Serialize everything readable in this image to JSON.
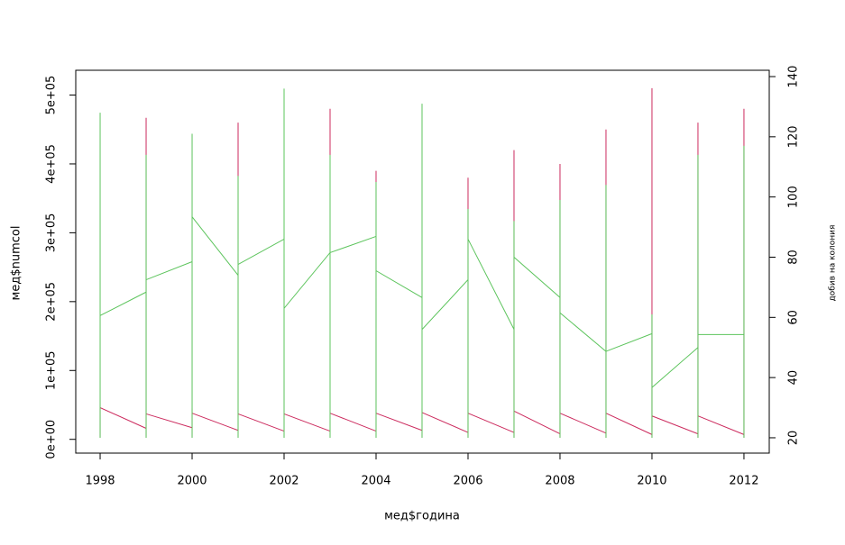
{
  "chart_data": {
    "type": "line",
    "xlabel": "мед$година",
    "ylabel": "мед$numcol",
    "y2label": "добив на колония",
    "xlim": [
      1997.47,
      2012.55
    ],
    "xticks": [
      1998,
      2000,
      2002,
      2004,
      2006,
      2008,
      2010,
      2012
    ],
    "ylim": [
      -20000,
      536000
    ],
    "yticks": [
      {
        "value": 0,
        "label": "0e+00"
      },
      {
        "value": 100000,
        "label": "1e+05"
      },
      {
        "value": 200000,
        "label": "2e+05"
      },
      {
        "value": 300000,
        "label": "3e+05"
      },
      {
        "value": 400000,
        "label": "4e+05"
      },
      {
        "value": 500000,
        "label": "5e+05"
      }
    ],
    "y2lim": [
      14.9,
      142.1
    ],
    "y2ticks": [
      20,
      40,
      60,
      80,
      100,
      120,
      140
    ],
    "series": [
      {
        "color": "#cc2b5e",
        "x": [
          1998,
          1998,
          1999,
          1999,
          1999,
          1999,
          2000,
          2000,
          2000,
          2000,
          2001,
          2001,
          2001,
          2001,
          2002,
          2002,
          2002,
          2002,
          2003,
          2003,
          2003,
          2003,
          2004,
          2004,
          2004,
          2004,
          2005,
          2005,
          2005,
          2005,
          2006,
          2006,
          2006,
          2006,
          2007,
          2007,
          2007,
          2007,
          2008,
          2008,
          2008,
          2008,
          2009,
          2009,
          2009,
          2009,
          2010,
          2010,
          2010,
          2010,
          2011,
          2011,
          2011,
          2011,
          2012,
          2012,
          2012
        ],
        "values": [
          2600,
          46000,
          16000,
          2600,
          467000,
          37000,
          17000,
          2600,
          45000,
          38000,
          13000,
          2600,
          460000,
          37000,
          12000,
          2600,
          85000,
          37000,
          12000,
          2600,
          480000,
          38000,
          12000,
          2600,
          390000,
          38000,
          13000,
          2600,
          45000,
          39000,
          10000,
          2600,
          380000,
          38000,
          10000,
          2600,
          420000,
          41000,
          8000,
          2600,
          400000,
          38000,
          9000,
          2600,
          450000,
          38000,
          7000,
          2600,
          510000,
          34000,
          8000,
          2600,
          460000,
          34000,
          7000,
          2600,
          480000
        ]
      },
      {
        "color": "#5cc45c",
        "axis": "y2",
        "x": [
          1998,
          1998,
          1998,
          1999,
          1999,
          1999,
          1999,
          2000,
          2000,
          2000,
          2000,
          2001,
          2001,
          2001,
          2001,
          2002,
          2002,
          2002,
          2002,
          2003,
          2003,
          2003,
          2003,
          2004,
          2004,
          2004,
          2004,
          2005,
          2005,
          2005,
          2005,
          2006,
          2006,
          2006,
          2006,
          2007,
          2007,
          2007,
          2007,
          2008,
          2008,
          2008,
          2008,
          2009,
          2009,
          2009,
          2009,
          2010,
          2010,
          2010,
          2010,
          2011,
          2011,
          2011,
          2011,
          2012,
          2012,
          2012
        ],
        "values": [
          20,
          128,
          60.6,
          68.4,
          20,
          114,
          72.5,
          78.5,
          20,
          121,
          93.4,
          74,
          20,
          107,
          77.6,
          86,
          20,
          136,
          63,
          81.5,
          20,
          114,
          81.5,
          86.9,
          20,
          105,
          75.5,
          66.6,
          20,
          131,
          56,
          72.5,
          20,
          96,
          86,
          56,
          20,
          92,
          80,
          66.6,
          20,
          99,
          61.5,
          48.7,
          20,
          104,
          48.7,
          54.6,
          20,
          61,
          36.7,
          50,
          20,
          114,
          54.3,
          54.3,
          20,
          117
        ]
      }
    ]
  }
}
